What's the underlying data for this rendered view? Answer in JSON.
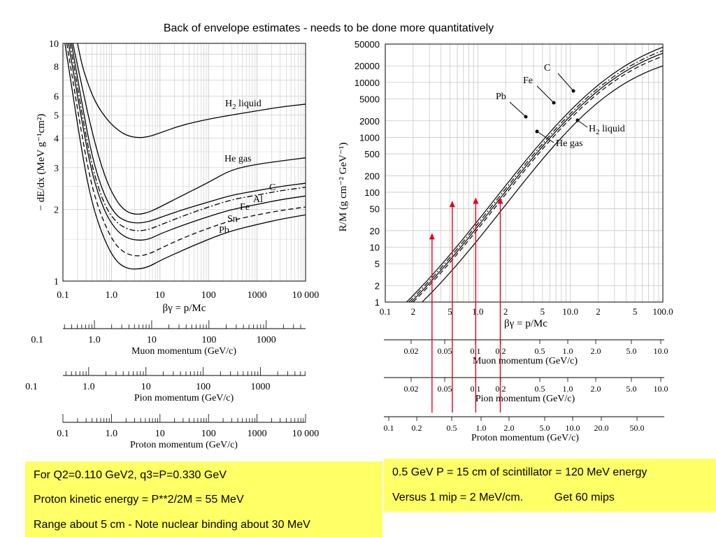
{
  "title": "Back of envelope estimates - needs to be done more quantitatively",
  "colors": {
    "background": "#ffffff",
    "note_fill": "#ffff66",
    "marker_arrow": "#e8001c",
    "curve": "#000000",
    "grid": "#c8c8c8"
  },
  "notes_left": [
    "For Q2=0.110 GeV2,  q3=P=0.330 GeV",
    "Proton kinetic energy = P**2/2M =  55 MeV",
    "Range about 5 cm - Note nuclear binding about 30 MeV"
  ],
  "notes_right": [
    "0.5 GeV P = 15 cm of scintillator = 120 MeV energy",
    "Versus 1 mip = 2 MeV/cm.          Get 60 mips"
  ],
  "chart_data": [
    {
      "type": "line",
      "xscale": "log",
      "yscale": "log",
      "xlabel": "βγ = p/Mc",
      "ylabel": "− dE/dx (MeV g⁻¹cm²)",
      "xlim": [
        0.1,
        10000
      ],
      "ylim": [
        1,
        10
      ],
      "x_ticks": [
        "0.1",
        "1.0",
        "10",
        "100",
        "1000",
        "10 000"
      ],
      "y_ticks": [
        "1",
        "2",
        "3",
        "4",
        "5",
        "6",
        "8",
        "10"
      ],
      "grid": true,
      "series": [
        {
          "name": "H2 liquid",
          "label_text": "H",
          "label_sub": "2",
          "label_rest": " liquid",
          "style": "solid",
          "points": [
            [
              0.2,
              10
            ],
            [
              0.25,
              8
            ],
            [
              0.35,
              6.5
            ],
            [
              0.5,
              5.5
            ],
            [
              0.8,
              4.8
            ],
            [
              1.2,
              4.4
            ],
            [
              2,
              4.1
            ],
            [
              3.5,
              4.0
            ],
            [
              6,
              4.05
            ],
            [
              10,
              4.2
            ],
            [
              30,
              4.55
            ],
            [
              100,
              4.8
            ],
            [
              300,
              5.0
            ],
            [
              1000,
              5.2
            ],
            [
              3000,
              5.4
            ],
            [
              10000,
              5.55
            ]
          ]
        },
        {
          "name": "He gas",
          "label_text": "He gas",
          "style": "solid",
          "points": [
            [
              0.16,
              10
            ],
            [
              0.25,
              6.5
            ],
            [
              0.4,
              4.2
            ],
            [
              0.7,
              2.8
            ],
            [
              1.2,
              2.2
            ],
            [
              2,
              1.95
            ],
            [
              3.5,
              1.9
            ],
            [
              6,
              1.95
            ],
            [
              10,
              2.05
            ],
            [
              30,
              2.3
            ],
            [
              100,
              2.6
            ],
            [
              300,
              2.95
            ],
            [
              1000,
              3.1
            ],
            [
              3000,
              3.2
            ],
            [
              10000,
              3.3
            ]
          ]
        },
        {
          "name": "C",
          "label_text": "C",
          "style": "solid",
          "points": [
            [
              0.15,
              10
            ],
            [
              0.25,
              5.5
            ],
            [
              0.4,
              3.3
            ],
            [
              0.7,
              2.3
            ],
            [
              1.2,
              1.9
            ],
            [
              2,
              1.78
            ],
            [
              3.5,
              1.75
            ],
            [
              6,
              1.78
            ],
            [
              10,
              1.85
            ],
            [
              30,
              2.0
            ],
            [
              100,
              2.15
            ],
            [
              300,
              2.3
            ],
            [
              1000,
              2.4
            ],
            [
              3000,
              2.5
            ],
            [
              10000,
              2.58
            ]
          ]
        },
        {
          "name": "Al",
          "label_text": "Al",
          "style": "dashdot",
          "points": [
            [
              0.14,
              10
            ],
            [
              0.25,
              5.0
            ],
            [
              0.4,
              3.0
            ],
            [
              0.7,
              2.1
            ],
            [
              1.2,
              1.78
            ],
            [
              2,
              1.66
            ],
            [
              3.5,
              1.62
            ],
            [
              6,
              1.65
            ],
            [
              10,
              1.72
            ],
            [
              30,
              1.88
            ],
            [
              100,
              2.05
            ],
            [
              300,
              2.2
            ],
            [
              1000,
              2.3
            ],
            [
              3000,
              2.4
            ],
            [
              10000,
              2.48
            ]
          ]
        },
        {
          "name": "Fe",
          "label_text": "Fe",
          "style": "solid",
          "points": [
            [
              0.13,
              10
            ],
            [
              0.25,
              4.6
            ],
            [
              0.4,
              2.8
            ],
            [
              0.7,
              1.98
            ],
            [
              1.2,
              1.65
            ],
            [
              2,
              1.52
            ],
            [
              3.5,
              1.48
            ],
            [
              6,
              1.5
            ],
            [
              10,
              1.58
            ],
            [
              30,
              1.72
            ],
            [
              100,
              1.87
            ],
            [
              300,
              2.0
            ],
            [
              1000,
              2.1
            ],
            [
              3000,
              2.2
            ],
            [
              10000,
              2.28
            ]
          ]
        },
        {
          "name": "Sn",
          "label_text": "Sn",
          "style": "dashed",
          "points": [
            [
              0.12,
              10
            ],
            [
              0.25,
              4.0
            ],
            [
              0.4,
              2.45
            ],
            [
              0.7,
              1.75
            ],
            [
              1.2,
              1.42
            ],
            [
              2,
              1.3
            ],
            [
              3.5,
              1.27
            ],
            [
              6,
              1.3
            ],
            [
              10,
              1.37
            ],
            [
              30,
              1.52
            ],
            [
              100,
              1.67
            ],
            [
              300,
              1.8
            ],
            [
              1000,
              1.9
            ],
            [
              3000,
              1.98
            ],
            [
              10000,
              2.05
            ]
          ]
        },
        {
          "name": "Pb",
          "label_text": "Pb",
          "style": "solid",
          "points": [
            [
              0.11,
              10
            ],
            [
              0.25,
              3.4
            ],
            [
              0.4,
              2.1
            ],
            [
              0.7,
              1.5
            ],
            [
              1.2,
              1.22
            ],
            [
              2,
              1.13
            ],
            [
              3.5,
              1.12
            ],
            [
              6,
              1.15
            ],
            [
              10,
              1.22
            ],
            [
              30,
              1.35
            ],
            [
              100,
              1.5
            ],
            [
              300,
              1.63
            ],
            [
              1000,
              1.73
            ],
            [
              3000,
              1.82
            ],
            [
              10000,
              1.9
            ]
          ]
        }
      ],
      "momentum_axes": [
        {
          "label": "Muon momentum (GeV/c)",
          "ticks": [
            "0.1",
            "1.0",
            "10",
            "100",
            "1000"
          ]
        },
        {
          "label": "Pion momentum (GeV/c)",
          "ticks": [
            "0.1",
            "1.0",
            "10",
            "100",
            "1000"
          ]
        },
        {
          "label": "Proton momentum (GeV/c)",
          "ticks": [
            "0.1",
            "1.0",
            "10",
            "100",
            "1000",
            "10 000"
          ]
        }
      ]
    },
    {
      "type": "line",
      "xscale": "log",
      "yscale": "log",
      "xlabel": "βγ = p/Mc",
      "ylabel": "R/M (g cm⁻² GeV⁻¹)",
      "xlim": [
        0.1,
        100
      ],
      "ylim": [
        1,
        50000
      ],
      "x_ticks": [
        "0.1",
        "2",
        "5",
        "1.0",
        "2",
        "5",
        "10.0",
        "2",
        "5",
        "100.0"
      ],
      "y_ticks": [
        "1",
        "2",
        "5",
        "10",
        "20",
        "50",
        "100",
        "200",
        "500",
        "1000",
        "2000",
        "5000",
        "10000",
        "20000",
        "50000"
      ],
      "grid": true,
      "series": [
        {
          "name": "Pb",
          "label_text": "Pb",
          "style": "solid",
          "points": [
            [
              0.17,
              1
            ],
            [
              100,
              44000
            ]
          ]
        },
        {
          "name": "Fe",
          "label_text": "Fe",
          "style": "dashdot",
          "points": [
            [
              0.18,
              1
            ],
            [
              100,
              38000
            ]
          ]
        },
        {
          "name": "C",
          "label_text": "C",
          "style": "solid",
          "points": [
            [
              0.19,
              1
            ],
            [
              100,
              34000
            ]
          ]
        },
        {
          "name": "He gas",
          "label_text": "He gas",
          "style": "dashed",
          "points": [
            [
              0.2,
              1
            ],
            [
              100,
              30000
            ]
          ]
        },
        {
          "name": "H2 liquid",
          "label_text": "H",
          "label_sub": "2",
          "label_rest": " liquid",
          "style": "solid",
          "points": [
            [
              0.25,
              1
            ],
            [
              100,
              20000
            ]
          ]
        }
      ],
      "markers_at_betagamma": [
        0.32,
        0.53,
        0.95,
        1.75
      ],
      "marker_tops_rm": [
        18,
        70,
        80,
        80
      ],
      "momentum_axes": [
        {
          "label": "Muon momentum (GeV/c)",
          "ticks": [
            "0.02",
            "0.05",
            "0.1",
            "0.2",
            "0.5",
            "1.0",
            "2.0",
            "5.0",
            "10.0"
          ]
        },
        {
          "label": "Pion momentum (GeV/c)",
          "ticks": [
            "0.02",
            "0.05",
            "0.1",
            "0.2",
            "0.5",
            "1.0",
            "2.0",
            "5.0",
            "10.0"
          ]
        },
        {
          "label": "Proton momentum (GeV/c)",
          "ticks": [
            "0.1",
            "0.2",
            "0.5",
            "1.0",
            "2.0",
            "5.0",
            "10.0",
            "20.0",
            "50.0"
          ]
        }
      ]
    }
  ]
}
